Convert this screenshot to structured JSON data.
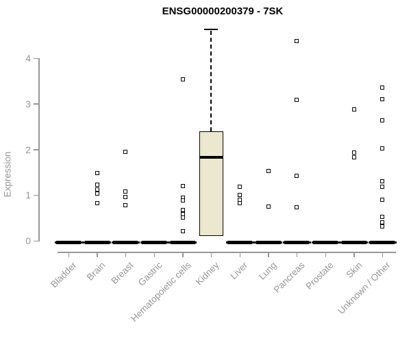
{
  "title": "ENSG00000200379 - 7SK",
  "chart_data": {
    "type": "boxplot",
    "title": "ENSG00000200379 - 7SK",
    "xlabel": "",
    "ylabel": "Expression",
    "ylim": [
      0,
      4.8
    ],
    "yticks": [
      0,
      1,
      2,
      3,
      4
    ],
    "grid": false,
    "legend": "none",
    "box_fill_color": "#ECE8CF",
    "axis_color": "#969696",
    "outlier_marker": "open-square",
    "categories": [
      "Bladder",
      "Brain",
      "Breast",
      "Gastric",
      "Hematopoietic cells",
      "Kidney",
      "Liver",
      "Lung",
      "Pancreas",
      "Prostate",
      "Skin",
      "Unknown / Other"
    ],
    "series": [
      {
        "category": "Bladder",
        "box": {
          "whisker_low": 0,
          "q1": 0,
          "median": 0,
          "q3": 0,
          "whisker_high": 0
        },
        "outliers": []
      },
      {
        "category": "Brain",
        "box": {
          "whisker_low": 0,
          "q1": 0,
          "median": 0,
          "q3": 0,
          "whisker_high": 0
        },
        "outliers": [
          1.48,
          1.23,
          1.12,
          1.03,
          0.82
        ]
      },
      {
        "category": "Breast",
        "box": {
          "whisker_low": 0,
          "q1": 0,
          "median": 0,
          "q3": 0,
          "whisker_high": 0
        },
        "outliers": [
          1.95,
          1.08,
          0.96,
          0.78
        ]
      },
      {
        "category": "Gastric",
        "box": {
          "whisker_low": 0,
          "q1": 0,
          "median": 0,
          "q3": 0,
          "whisker_high": 0
        },
        "outliers": []
      },
      {
        "category": "Hematopoietic cells",
        "box": {
          "whisker_low": 0,
          "q1": 0,
          "median": 0,
          "q3": 0,
          "whisker_high": 0
        },
        "outliers": [
          3.54,
          1.2,
          0.95,
          0.89,
          0.67,
          0.59,
          0.51,
          0.21
        ]
      },
      {
        "category": "Kidney",
        "box": {
          "whisker_low": 0.1,
          "q1": 0.1,
          "median": 1.83,
          "q3": 2.4,
          "whisker_high": 4.63
        },
        "outliers": []
      },
      {
        "category": "Liver",
        "box": {
          "whisker_low": 0,
          "q1": 0,
          "median": 0,
          "q3": 0,
          "whisker_high": 0
        },
        "outliers": [
          1.18,
          1.0,
          0.9,
          0.82
        ]
      },
      {
        "category": "Lung",
        "box": {
          "whisker_low": 0,
          "q1": 0,
          "median": 0,
          "q3": 0,
          "whisker_high": 0
        },
        "outliers": [
          1.53,
          0.75
        ]
      },
      {
        "category": "Pancreas",
        "box": {
          "whisker_low": 0,
          "q1": 0,
          "median": 0,
          "q3": 0,
          "whisker_high": 0
        },
        "outliers": [
          4.37,
          3.09,
          1.42,
          0.73
        ]
      },
      {
        "category": "Prostate",
        "box": {
          "whisker_low": 0,
          "q1": 0,
          "median": 0,
          "q3": 0,
          "whisker_high": 0
        },
        "outliers": []
      },
      {
        "category": "Skin",
        "box": {
          "whisker_low": 0,
          "q1": 0,
          "median": 0,
          "q3": 0,
          "whisker_high": 0
        },
        "outliers": [
          2.88,
          1.93,
          1.83
        ]
      },
      {
        "category": "Unknown / Other",
        "box": {
          "whisker_low": 0,
          "q1": 0,
          "median": 0,
          "q3": 0,
          "whisker_high": 0
        },
        "outliers": [
          3.36,
          3.1,
          2.64,
          2.02,
          1.3,
          1.18,
          0.9,
          0.52,
          0.4,
          0.31
        ]
      }
    ]
  }
}
